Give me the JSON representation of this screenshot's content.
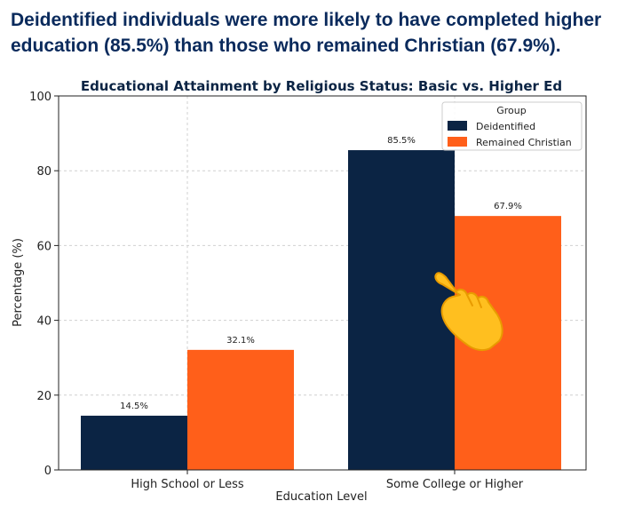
{
  "headline": "Deidentified individuals were more likely to have completed higher education (85.5%) than those who remained Christian (67.9%).",
  "chart_data": {
    "type": "bar",
    "title": "Educational Attainment by Religious Status: Basic vs. Higher Ed",
    "xlabel": "Education Level",
    "ylabel": "Percentage (%)",
    "categories": [
      "High School or Less",
      "Some College or Higher"
    ],
    "series": [
      {
        "name": "Deidentified",
        "values": [
          14.5,
          85.5
        ],
        "color": "#0b2444"
      },
      {
        "name": "Remained Christian",
        "values": [
          32.1,
          67.9
        ],
        "color": "#ff5f1a"
      }
    ],
    "data_labels": [
      [
        "14.5%",
        "85.5%"
      ],
      [
        "32.1%",
        "67.9%"
      ]
    ],
    "ylim": [
      0,
      100
    ],
    "yticks": [
      0,
      20,
      40,
      60,
      80,
      100
    ],
    "grid": true,
    "legend": {
      "title": "Group",
      "placement": "top-right"
    }
  },
  "overlay_icon": "pointing-hand-icon"
}
